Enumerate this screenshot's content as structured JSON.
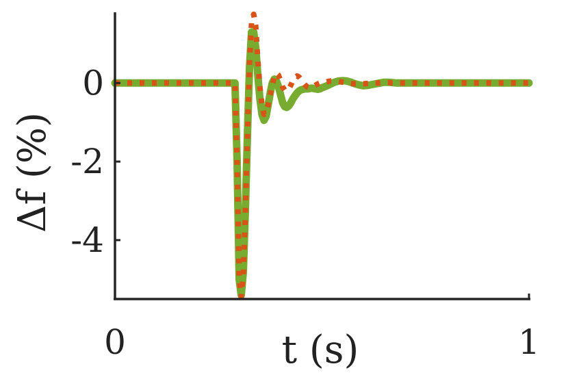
{
  "chart_data": {
    "type": "line",
    "title": "",
    "xlabel": "t (s)",
    "ylabel": "Δf (%)",
    "xlim": [
      0,
      1
    ],
    "ylim": [
      -5.5,
      1.8
    ],
    "xticks": [
      0,
      1
    ],
    "xtick_labels": [
      "0",
      "1"
    ],
    "yticks": [
      0,
      -2,
      -4
    ],
    "ytick_labels": [
      "0",
      "-2",
      "-4"
    ],
    "grid": false,
    "legend": "none",
    "series": [
      {
        "color": "#77ac30",
        "style": "solid",
        "x": [
          0,
          0.1,
          0.2,
          0.29,
          0.295,
          0.3,
          0.305,
          0.31,
          0.315,
          0.32,
          0.325,
          0.33,
          0.335,
          0.34,
          0.345,
          0.35,
          0.355,
          0.36,
          0.365,
          0.37,
          0.375,
          0.38,
          0.385,
          0.39,
          0.395,
          0.4,
          0.405,
          0.41,
          0.415,
          0.42,
          0.425,
          0.43,
          0.435,
          0.44,
          0.445,
          0.45,
          0.455,
          0.46,
          0.465,
          0.47,
          0.475,
          0.48,
          0.485,
          0.49,
          0.495,
          0.5,
          0.51,
          0.52,
          0.53,
          0.54,
          0.55,
          0.56,
          0.57,
          0.58,
          0.59,
          0.6,
          0.61,
          0.62,
          0.63,
          0.64,
          0.65,
          0.66,
          0.67,
          0.68,
          0.69,
          0.7,
          0.72,
          0.74,
          0.76,
          0.78,
          0.8,
          0.85,
          0.9,
          0.95,
          1.0
        ],
        "y": [
          0.0,
          0.0,
          0.0,
          0.0,
          -2.0,
          -5.0,
          -5.4,
          -4.8,
          -3.2,
          -1.3,
          0.4,
          1.3,
          1.3,
          0.9,
          0.2,
          -0.4,
          -0.8,
          -0.95,
          -0.85,
          -0.55,
          -0.25,
          0.0,
          0.1,
          0.05,
          -0.1,
          -0.3,
          -0.5,
          -0.6,
          -0.62,
          -0.58,
          -0.5,
          -0.4,
          -0.32,
          -0.25,
          -0.2,
          -0.17,
          -0.16,
          -0.15,
          -0.15,
          -0.14,
          -0.13,
          -0.14,
          -0.15,
          -0.16,
          -0.15,
          -0.12,
          -0.08,
          -0.03,
          0.02,
          0.05,
          0.06,
          0.05,
          0.02,
          -0.02,
          -0.05,
          -0.07,
          -0.06,
          -0.04,
          -0.02,
          0.0,
          0.02,
          0.02,
          0.01,
          0.0,
          0.0,
          0.0,
          0.0,
          0.0,
          0.0,
          0.0,
          0.0,
          0.0,
          0.0,
          0.0,
          0.0
        ]
      },
      {
        "color": "#d95319",
        "style": "dotted",
        "x": [
          0,
          0.1,
          0.2,
          0.29,
          0.295,
          0.3,
          0.305,
          0.31,
          0.315,
          0.32,
          0.325,
          0.33,
          0.335,
          0.34,
          0.345,
          0.35,
          0.355,
          0.36,
          0.365,
          0.37,
          0.375,
          0.38,
          0.385,
          0.39,
          0.395,
          0.4,
          0.405,
          0.41,
          0.415,
          0.42,
          0.425,
          0.43,
          0.435,
          0.44,
          0.445,
          0.45,
          0.455,
          0.46,
          0.465,
          0.47,
          0.475,
          0.48,
          0.485,
          0.49,
          0.495,
          0.5,
          0.51,
          0.52,
          0.53,
          0.54,
          0.55,
          0.56,
          0.57,
          0.58,
          0.59,
          0.6,
          0.61,
          0.62,
          0.63,
          0.64,
          0.65,
          0.66,
          0.67,
          0.68,
          0.69,
          0.7,
          0.72,
          0.74,
          0.76,
          0.78,
          0.8,
          0.85,
          0.9,
          0.95,
          1.0
        ],
        "y": [
          0.0,
          0.0,
          0.0,
          0.0,
          -2.0,
          -5.0,
          -5.45,
          -4.9,
          -3.3,
          -1.3,
          0.5,
          1.55,
          1.75,
          1.45,
          0.6,
          -0.1,
          -0.55,
          -0.8,
          -0.75,
          -0.55,
          -0.3,
          -0.05,
          0.15,
          0.25,
          0.2,
          0.05,
          -0.1,
          -0.18,
          -0.2,
          -0.15,
          -0.05,
          0.07,
          0.15,
          0.18,
          0.15,
          0.08,
          0.0,
          -0.06,
          -0.1,
          -0.12,
          -0.11,
          -0.08,
          -0.05,
          -0.02,
          0.0,
          0.01,
          0.03,
          0.05,
          0.05,
          0.04,
          0.02,
          0.0,
          -0.01,
          -0.02,
          -0.02,
          -0.02,
          -0.01,
          0.0,
          0.0,
          0.0,
          0.01,
          0.01,
          0.0,
          0.0,
          0.0,
          0.0,
          0.0,
          0.0,
          0.0,
          0.0,
          0.0,
          0.0,
          0.0,
          0.0,
          0.0
        ]
      }
    ]
  }
}
